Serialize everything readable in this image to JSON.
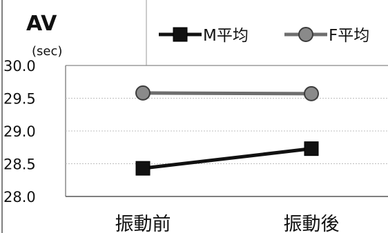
{
  "chart_data": {
    "type": "line",
    "title": "AV",
    "ylabel": "(sec)",
    "categories": [
      "振動前",
      "振動後"
    ],
    "ylim": [
      28.0,
      30.0
    ],
    "yticks": [
      "30.0",
      "29.5",
      "29.0",
      "28.5",
      "28.0"
    ],
    "grid": true,
    "legend_position": "top-right",
    "series": [
      {
        "name": "M平均",
        "values": [
          28.43,
          28.73
        ],
        "color": "#111111",
        "marker": "square"
      },
      {
        "name": "F平均",
        "values": [
          29.58,
          29.57
        ],
        "color": "#6e6e6e",
        "marker": "circle"
      }
    ]
  }
}
